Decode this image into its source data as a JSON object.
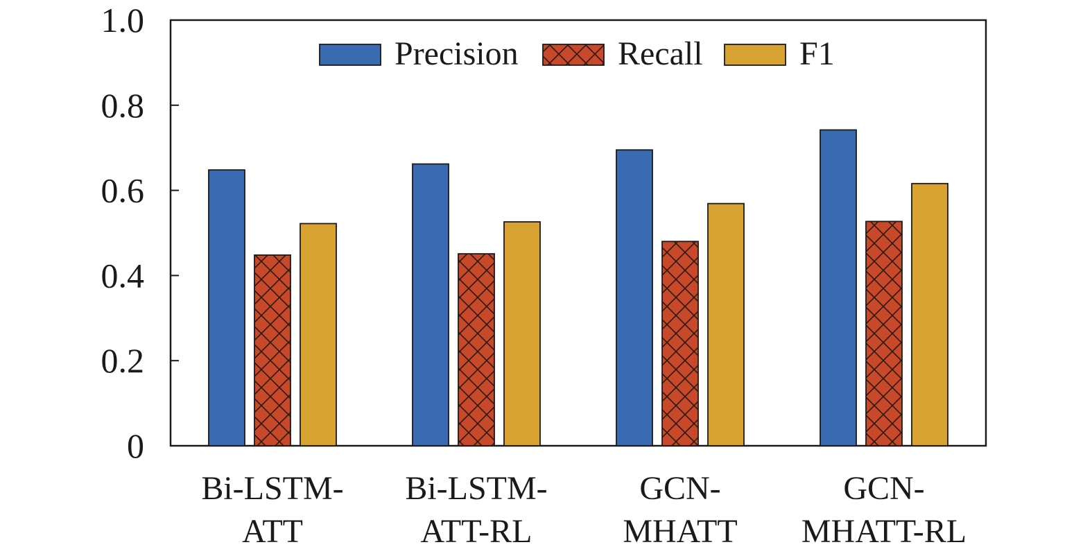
{
  "chart_data": {
    "type": "bar",
    "categories": [
      [
        "Bi-LSTM-",
        "ATT"
      ],
      [
        "Bi-LSTM-",
        "ATT-RL"
      ],
      [
        "GCN-",
        "MHATT"
      ],
      [
        "GCN-",
        "MHATT-RL"
      ]
    ],
    "series": [
      {
        "name": "Precision",
        "values": [
          0.648,
          0.662,
          0.695,
          0.742
        ],
        "color": "#3a6bb0",
        "pattern": "solid"
      },
      {
        "name": "Recall",
        "values": [
          0.448,
          0.451,
          0.48,
          0.527
        ],
        "color": "#c8482a",
        "pattern": "crosshatch"
      },
      {
        "name": "F1",
        "values": [
          0.522,
          0.526,
          0.569,
          0.616
        ],
        "color": "#d7a232",
        "pattern": "solid"
      }
    ],
    "ylim": [
      0,
      1.0
    ],
    "yticks": [
      0,
      0.2,
      0.4,
      0.6,
      0.8,
      1.0
    ],
    "ytick_labels": [
      "0",
      "0.2",
      "0.4",
      "0.6",
      "0.8",
      "1.0"
    ],
    "title": "",
    "xlabel": "",
    "ylabel": "",
    "grid": false,
    "legend_position": "top-center"
  }
}
